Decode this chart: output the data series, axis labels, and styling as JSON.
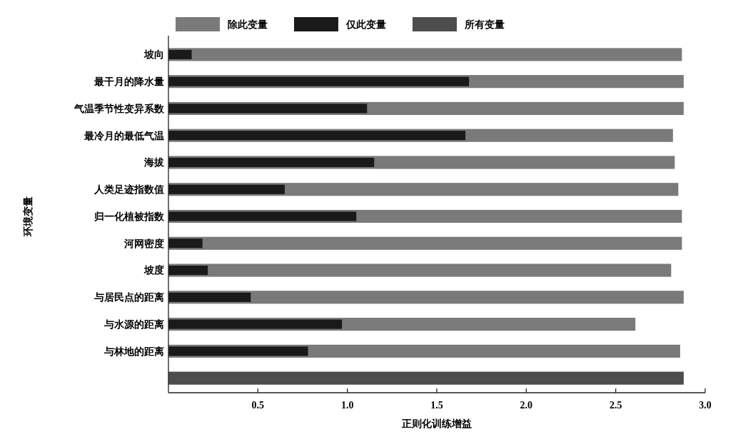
{
  "chart_data": {
    "type": "bar",
    "orientation": "horizontal",
    "xlabel": "正则化训练增益",
    "ylabel": "环境变量",
    "categories": [
      "坡向",
      "最干月的降水量",
      "气温季节性变异系数",
      "最冷月的最低气温",
      "海拔",
      "人类足迹指数值",
      "归一化植被指数",
      "河网密度",
      "坡度",
      "与居民点的距离",
      "与水源的距离",
      "与林地的距离",
      null
    ],
    "series": [
      {
        "name": "除此变量",
        "color": "#7a7a7a",
        "values": [
          2.87,
          2.88,
          2.88,
          2.82,
          2.83,
          2.85,
          2.87,
          2.87,
          2.81,
          2.88,
          2.61,
          2.86,
          null
        ]
      },
      {
        "name": "仅此变量",
        "color": "#1a1a1a",
        "values": [
          0.13,
          1.68,
          1.11,
          1.66,
          1.15,
          0.65,
          1.05,
          0.19,
          0.22,
          0.46,
          0.97,
          0.78,
          null
        ]
      },
      {
        "name": "所有变量",
        "color": "#4d4d4d",
        "values": [
          null,
          null,
          null,
          null,
          null,
          null,
          null,
          null,
          null,
          null,
          null,
          null,
          2.88
        ]
      }
    ],
    "xlim": [
      0,
      3
    ],
    "xticks": [
      0.5,
      {
        "value": 1,
        "label": "1.0"
      },
      1.5,
      {
        "value": 2,
        "label": "2.0"
      },
      2.5,
      {
        "value": 3,
        "label": "3.0"
      }
    ],
    "grid": false,
    "legend": "top"
  }
}
